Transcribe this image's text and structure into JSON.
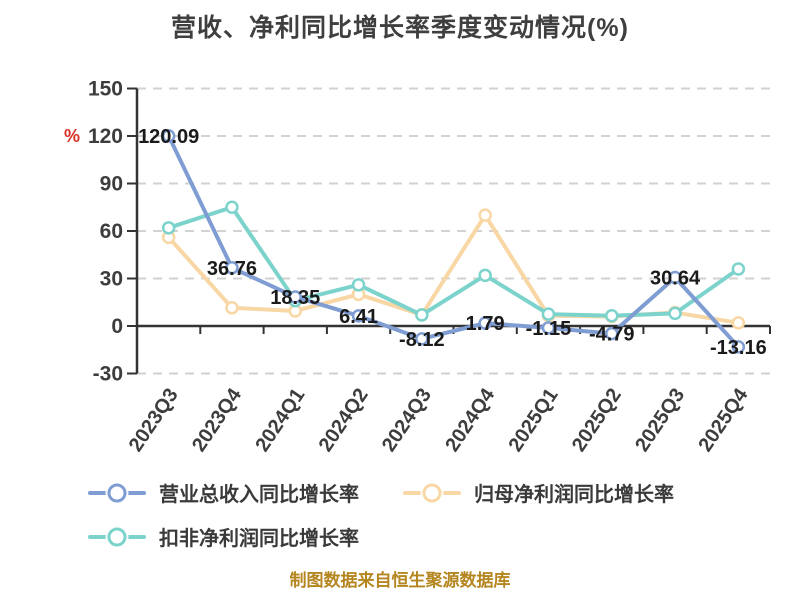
{
  "chart": {
    "title": "营收、净利同比增长率季度变动情况(%)",
    "y_unit": "%",
    "source_note": "制图数据来自恒生聚源数据库"
  },
  "chart_data": {
    "type": "line",
    "title": "营收、净利同比增长率季度变动情况(%)",
    "categories": [
      "2023Q3",
      "2023Q4",
      "2024Q1",
      "2024Q2",
      "2024Q3",
      "2024Q4",
      "2025Q1",
      "2025Q2",
      "2025Q3",
      "2025Q4"
    ],
    "series": [
      {
        "name": "营业总收入同比增长率",
        "color": "#7f9dd3",
        "values": [
          120.09,
          36.76,
          18.35,
          6.41,
          -8.12,
          1.79,
          -1.15,
          -4.79,
          30.64,
          -13.16
        ],
        "show_labels": true
      },
      {
        "name": "归母净利润同比增长率",
        "color": "#f8d7a4",
        "values": [
          56,
          11.5,
          9.5,
          20,
          7,
          70,
          6.5,
          6,
          8.5,
          2
        ],
        "show_labels": false
      },
      {
        "name": "扣非净利润同比增长率",
        "color": "#7cd3cc",
        "values": [
          62,
          75,
          16,
          26,
          7,
          32,
          7.5,
          6.5,
          8,
          36
        ],
        "show_labels": false
      }
    ],
    "ylim": [
      -30,
      150
    ],
    "yticks": [
      150,
      120,
      90,
      60,
      30,
      0,
      -30
    ],
    "ylabel": "%",
    "xlabel": "",
    "grid": "horizontal-dashed",
    "legend_position": "bottom-left",
    "marker": "circle-white-fill"
  },
  "colors": {
    "title": "#3f3f3f",
    "tick_label": "#3d3d3d",
    "data_label": "#1a1a1a",
    "unit_label": "#d93025",
    "gridline": "#d2d2d2",
    "axis": "#333333",
    "legend_text": "#3a3a3a",
    "source_note": "#b5861f",
    "background": "#ffffff"
  }
}
